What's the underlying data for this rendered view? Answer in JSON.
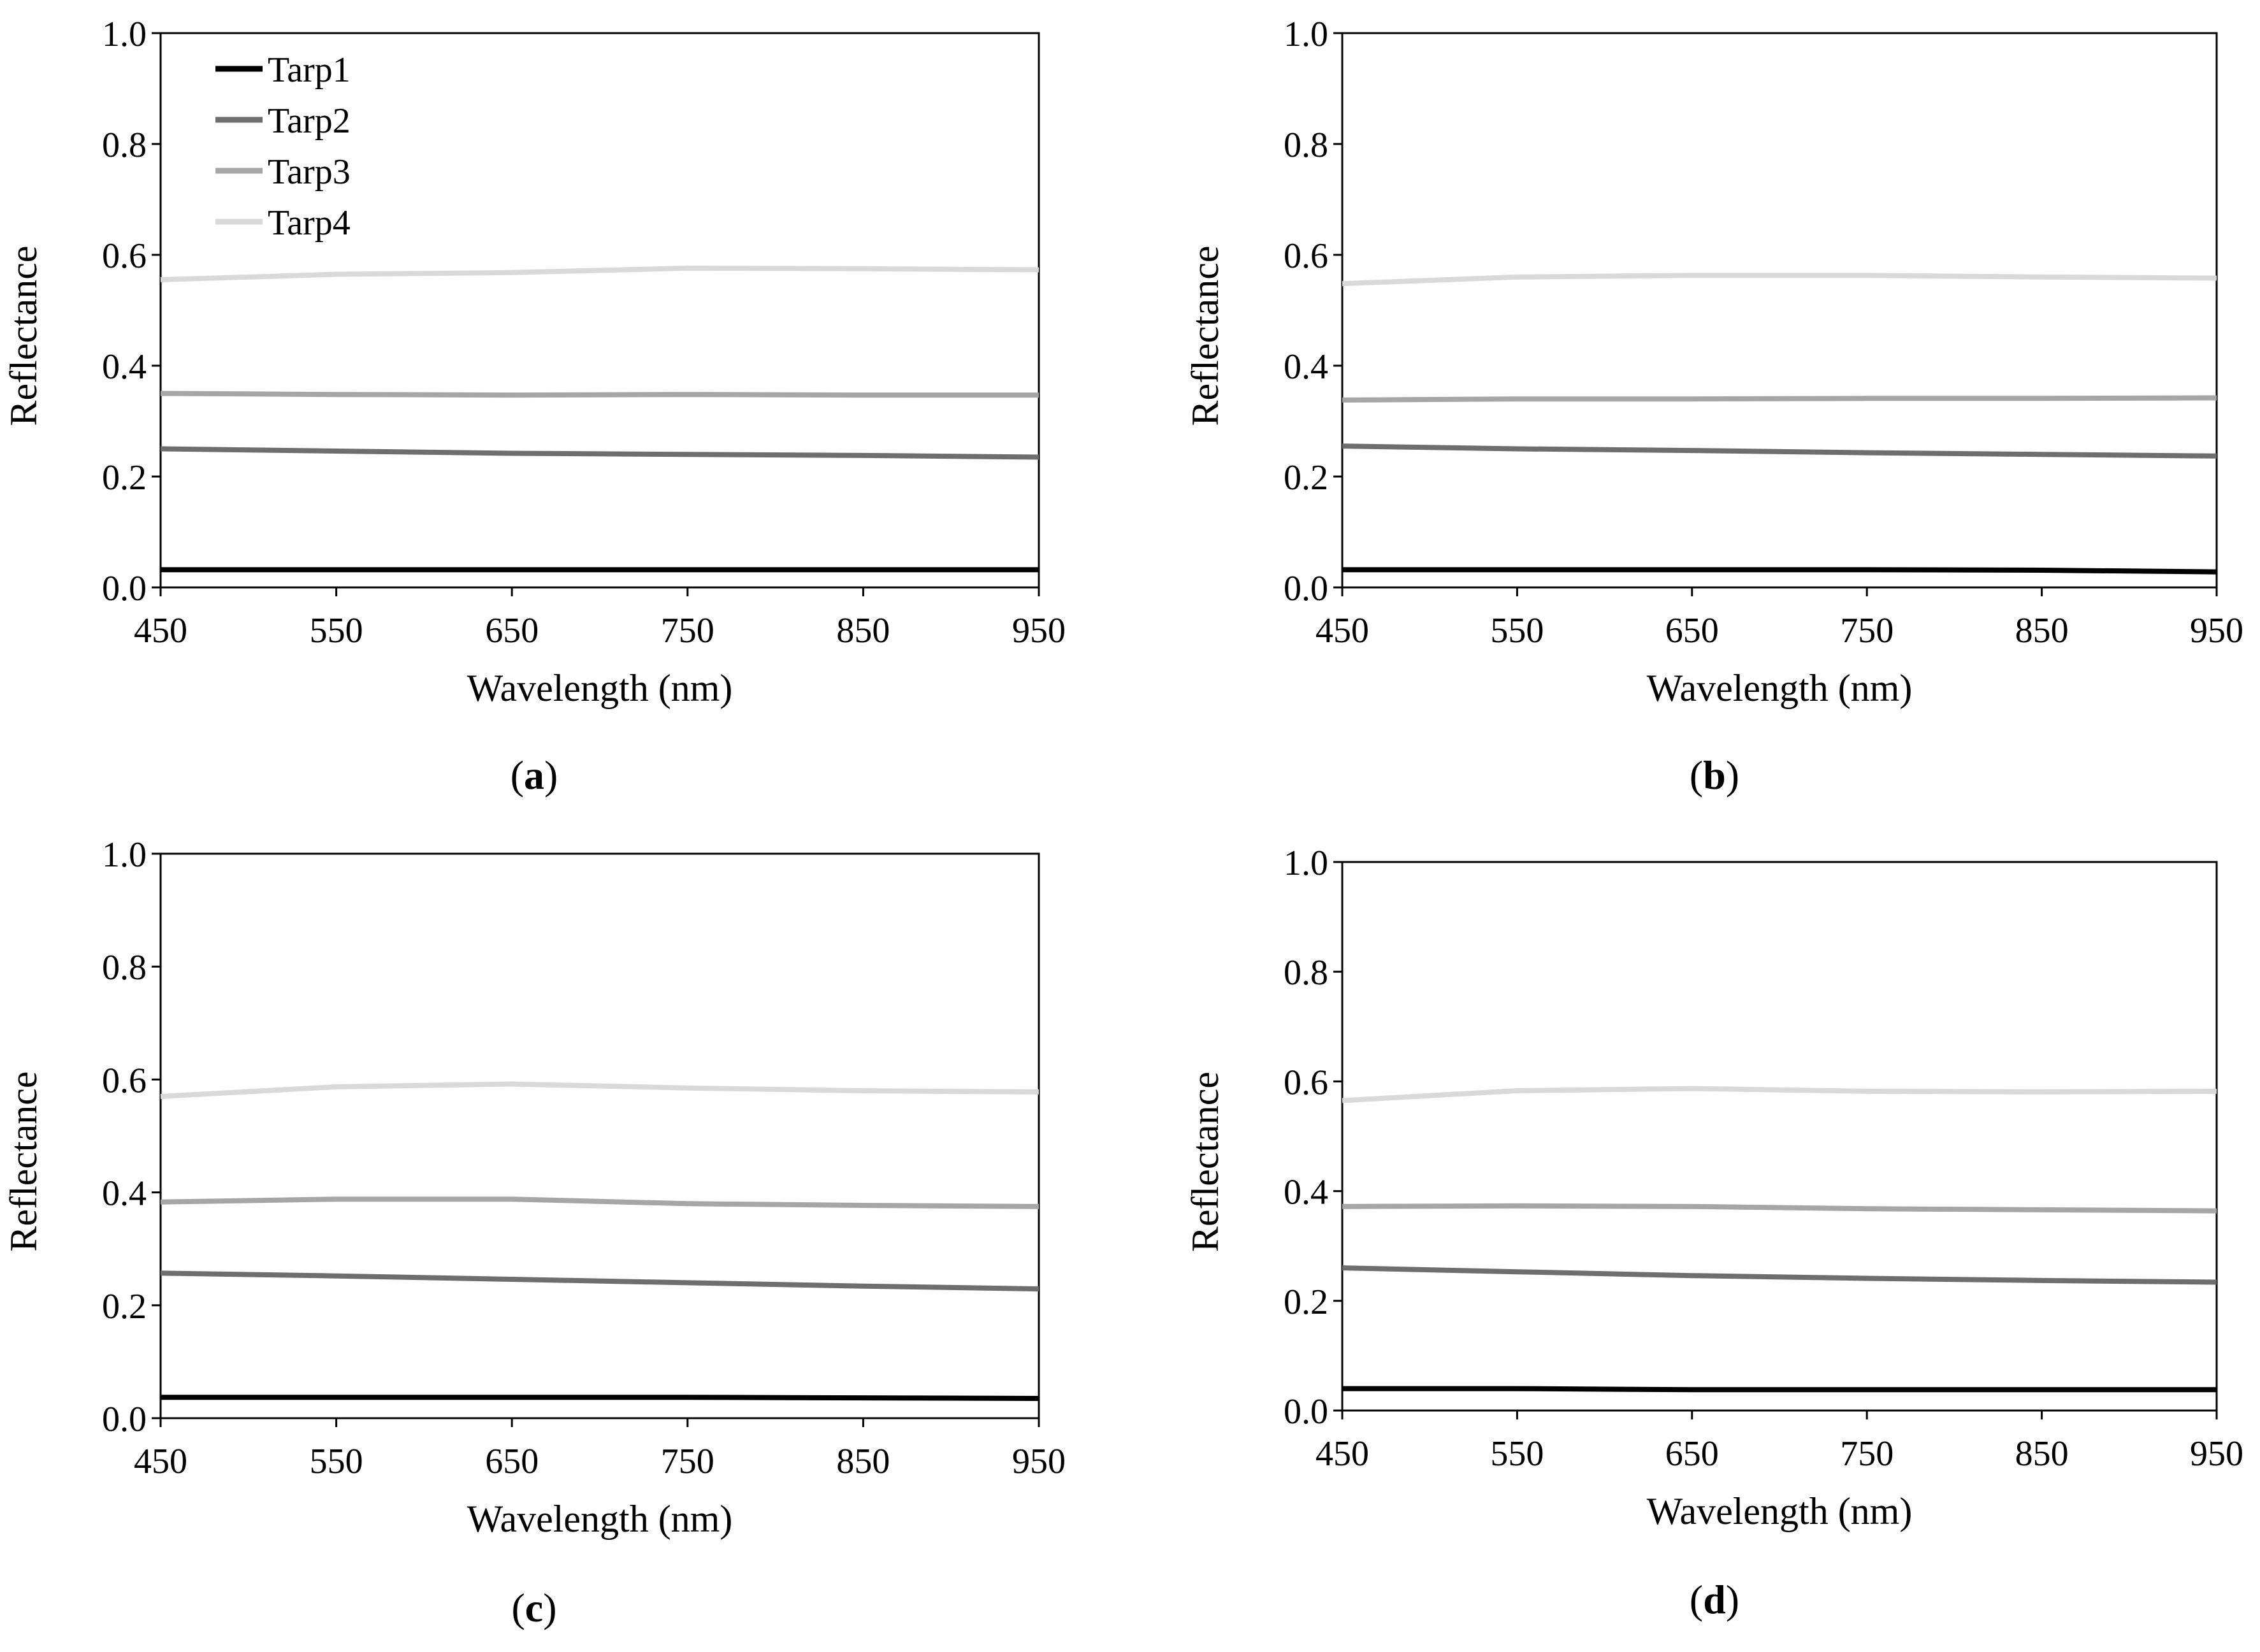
{
  "figure": {
    "captions": [
      {
        "open": "(",
        "letter": "a",
        "close": ")"
      },
      {
        "open": "(",
        "letter": "b",
        "close": ")"
      },
      {
        "open": "(",
        "letter": "c",
        "close": ")"
      },
      {
        "open": "(",
        "letter": "d",
        "close": ")"
      }
    ]
  },
  "chart_data": [
    {
      "type": "line",
      "panel": "a",
      "xlabel": "Wavelength (nm)",
      "ylabel": "Reflectance",
      "xlim": [
        450,
        950
      ],
      "ylim": [
        0.0,
        1.0
      ],
      "xticks": [
        "450",
        "550",
        "650",
        "750",
        "850",
        "950"
      ],
      "yticks": [
        "0.0",
        "0.2",
        "0.4",
        "0.6",
        "0.8",
        "1.0"
      ],
      "legend": {
        "position": "top-left",
        "entries": [
          "Tarp1",
          "Tarp2",
          "Tarp3",
          "Tarp4"
        ]
      },
      "x": [
        450,
        550,
        650,
        750,
        850,
        950
      ],
      "series": [
        {
          "name": "Tarp1",
          "color": "#000000",
          "values": [
            0.032,
            0.032,
            0.032,
            0.032,
            0.032,
            0.032
          ]
        },
        {
          "name": "Tarp2",
          "color": "#6e6e6e",
          "values": [
            0.25,
            0.246,
            0.242,
            0.24,
            0.238,
            0.235
          ]
        },
        {
          "name": "Tarp3",
          "color": "#a6a6a6",
          "values": [
            0.35,
            0.348,
            0.347,
            0.348,
            0.347,
            0.347
          ]
        },
        {
          "name": "Tarp4",
          "color": "#d9d9d9",
          "values": [
            0.555,
            0.565,
            0.568,
            0.576,
            0.575,
            0.573
          ]
        }
      ]
    },
    {
      "type": "line",
      "panel": "b",
      "xlabel": "Wavelength (nm)",
      "ylabel": "Reflectance",
      "xlim": [
        450,
        950
      ],
      "ylim": [
        0.0,
        1.0
      ],
      "xticks": [
        "450",
        "550",
        "650",
        "750",
        "850",
        "950"
      ],
      "yticks": [
        "0.0",
        "0.2",
        "0.4",
        "0.6",
        "0.8",
        "1.0"
      ],
      "x": [
        450,
        550,
        650,
        750,
        850,
        950
      ],
      "series": [
        {
          "name": "Tarp1",
          "color": "#000000",
          "values": [
            0.032,
            0.032,
            0.032,
            0.032,
            0.031,
            0.028
          ]
        },
        {
          "name": "Tarp2",
          "color": "#6e6e6e",
          "values": [
            0.255,
            0.25,
            0.247,
            0.243,
            0.24,
            0.237
          ]
        },
        {
          "name": "Tarp3",
          "color": "#a6a6a6",
          "values": [
            0.338,
            0.34,
            0.34,
            0.341,
            0.341,
            0.342
          ]
        },
        {
          "name": "Tarp4",
          "color": "#d9d9d9",
          "values": [
            0.548,
            0.56,
            0.563,
            0.563,
            0.56,
            0.558
          ]
        }
      ]
    },
    {
      "type": "line",
      "panel": "c",
      "xlabel": "Wavelength (nm)",
      "ylabel": "Reflectance",
      "xlim": [
        450,
        950
      ],
      "ylim": [
        0.0,
        1.0
      ],
      "xticks": [
        "450",
        "550",
        "650",
        "750",
        "850",
        "950"
      ],
      "yticks": [
        "0.0",
        "0.2",
        "0.4",
        "0.6",
        "0.8",
        "1.0"
      ],
      "x": [
        450,
        550,
        650,
        750,
        850,
        950
      ],
      "series": [
        {
          "name": "Tarp1",
          "color": "#000000",
          "values": [
            0.037,
            0.037,
            0.037,
            0.037,
            0.036,
            0.035
          ]
        },
        {
          "name": "Tarp2",
          "color": "#6e6e6e",
          "values": [
            0.257,
            0.252,
            0.246,
            0.24,
            0.234,
            0.229
          ]
        },
        {
          "name": "Tarp3",
          "color": "#a6a6a6",
          "values": [
            0.383,
            0.388,
            0.388,
            0.38,
            0.377,
            0.375
          ]
        },
        {
          "name": "Tarp4",
          "color": "#d9d9d9",
          "values": [
            0.57,
            0.587,
            0.592,
            0.585,
            0.58,
            0.578
          ]
        }
      ]
    },
    {
      "type": "line",
      "panel": "d",
      "xlabel": "Wavelength (nm)",
      "ylabel": "Reflectance",
      "xlim": [
        450,
        950
      ],
      "ylim": [
        0.0,
        1.0
      ],
      "xticks": [
        "450",
        "550",
        "650",
        "750",
        "850",
        "950"
      ],
      "yticks": [
        "0.0",
        "0.2",
        "0.4",
        "0.6",
        "0.8",
        "1.0"
      ],
      "x": [
        450,
        550,
        650,
        750,
        850,
        950
      ],
      "series": [
        {
          "name": "Tarp1",
          "color": "#000000",
          "values": [
            0.04,
            0.04,
            0.038,
            0.038,
            0.038,
            0.038
          ]
        },
        {
          "name": "Tarp2",
          "color": "#6e6e6e",
          "values": [
            0.26,
            0.253,
            0.246,
            0.241,
            0.237,
            0.234
          ]
        },
        {
          "name": "Tarp3",
          "color": "#a6a6a6",
          "values": [
            0.372,
            0.373,
            0.372,
            0.368,
            0.366,
            0.364
          ]
        },
        {
          "name": "Tarp4",
          "color": "#d9d9d9",
          "values": [
            0.565,
            0.583,
            0.587,
            0.582,
            0.581,
            0.582
          ]
        }
      ]
    }
  ]
}
